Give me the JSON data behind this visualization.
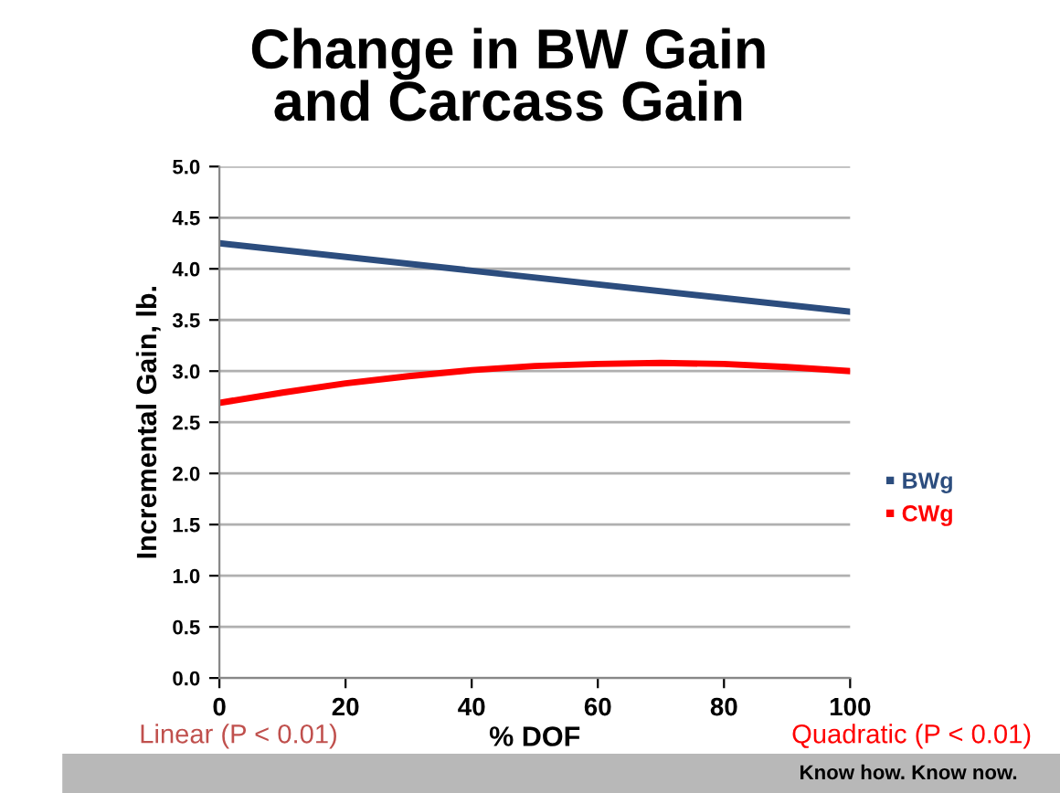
{
  "chart_data": {
    "type": "line",
    "title": "Change in BW Gain\nand Carcass Gain",
    "xlabel": "% DOF",
    "ylabel": "Incremental Gain, lb.",
    "x": [
      0,
      10,
      20,
      30,
      40,
      50,
      60,
      70,
      80,
      90,
      100
    ],
    "series": [
      {
        "name": "BWg",
        "color": "#2c4d7e",
        "x": [
          0,
          100
        ],
        "values": [
          4.25,
          3.58
        ]
      },
      {
        "name": "CWg",
        "color": "#ff0000",
        "values": [
          2.69,
          2.79,
          2.88,
          2.95,
          3.01,
          3.05,
          3.07,
          3.08,
          3.07,
          3.04,
          3.0
        ]
      }
    ],
    "xlim": [
      0,
      100
    ],
    "xticks": [
      0,
      20,
      40,
      60,
      80,
      100
    ],
    "ylim": [
      0,
      5
    ],
    "yticks": [
      {
        "value": 0,
        "label": "0.0"
      },
      {
        "value": 0.5,
        "label": "0.5"
      },
      {
        "value": 1,
        "label": "1.0"
      },
      {
        "value": 1.5,
        "label": "1.5"
      },
      {
        "value": 2,
        "label": "2.0"
      },
      {
        "value": 2.5,
        "label": "2.5"
      },
      {
        "value": 3,
        "label": "3.0"
      },
      {
        "value": 3.5,
        "label": "3.5"
      },
      {
        "value": 4,
        "label": "4.0"
      },
      {
        "value": 4.5,
        "label": "4.5"
      },
      {
        "value": 5,
        "label": "5.0"
      }
    ],
    "grid": "y",
    "legend": "right",
    "marker": "none",
    "line_style": "solid",
    "annotations": [
      "Linear (P < 0.01)",
      "Quadratic (P < 0.01)",
      "Know how. Know now."
    ]
  }
}
